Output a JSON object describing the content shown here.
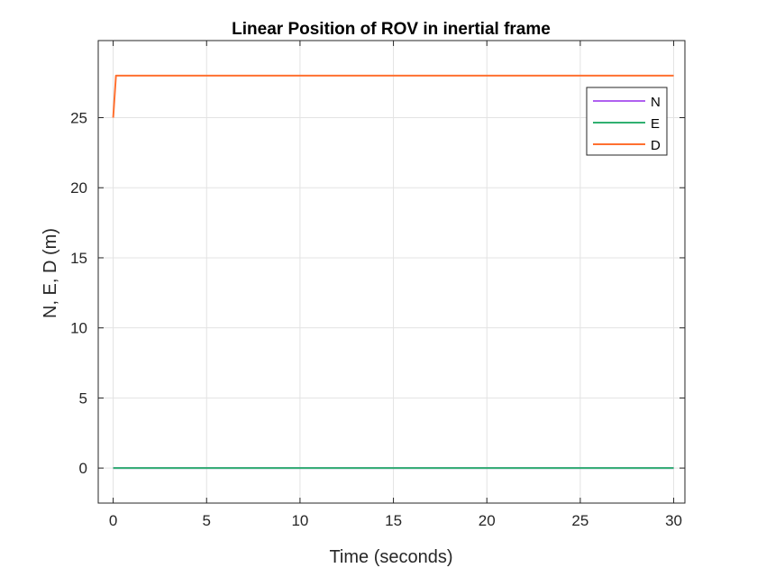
{
  "chart_data": {
    "type": "line",
    "title": "Linear Position of ROV in inertial frame",
    "xlabel": "Time (seconds)",
    "ylabel": "N, E, D (m)",
    "xlim": [
      -0.8,
      30.6
    ],
    "ylim": [
      -2.5,
      30.5
    ],
    "xticks": [
      0,
      5,
      10,
      15,
      20,
      25,
      30
    ],
    "yticks": [
      0,
      5,
      10,
      15,
      20,
      25
    ],
    "grid": true,
    "legend_position": "top-right",
    "series": [
      {
        "name": "N",
        "color": "#b060f0",
        "x": [
          0,
          30
        ],
        "y": [
          0,
          0
        ]
      },
      {
        "name": "E",
        "color": "#30b070",
        "x": [
          0,
          30
        ],
        "y": [
          0,
          0
        ]
      },
      {
        "name": "D",
        "color": "#ff7030",
        "x": [
          0,
          0.15,
          0.3,
          30
        ],
        "y": [
          25,
          28,
          28,
          28
        ]
      }
    ]
  }
}
